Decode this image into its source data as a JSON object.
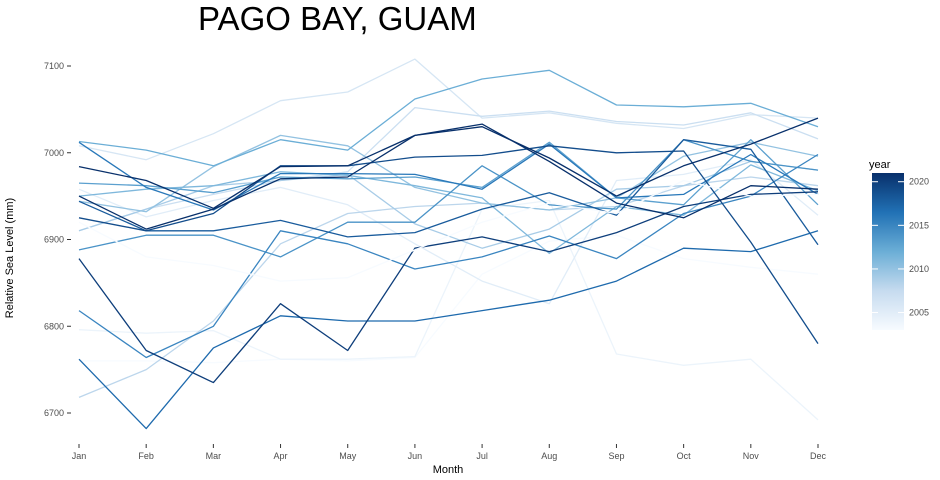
{
  "chart_data": {
    "type": "line",
    "title": "PAGO BAY,  GUAM",
    "xlabel": "Month",
    "ylabel": "Relative Sea Level (mm)",
    "categories": [
      "Jan",
      "Feb",
      "Mar",
      "Apr",
      "May",
      "Jun",
      "Jul",
      "Aug",
      "Sep",
      "Oct",
      "Nov",
      "Dec"
    ],
    "ylim": [
      6670,
      7120
    ],
    "yticks": [
      6700,
      6800,
      6900,
      7000,
      7100
    ],
    "ytick_labels": [
      "6700",
      "6800",
      "6900",
      "7000",
      "7100"
    ],
    "grid": false,
    "legend": {
      "title": "year",
      "position": "right",
      "type": "colorbar",
      "range": [
        2003,
        2021
      ],
      "ticks": [
        2005,
        2010,
        2015,
        2020
      ],
      "tick_labels": [
        "2005",
        "2010",
        "2015",
        "2020"
      ],
      "color_low": "#f7fbff",
      "color_high": "#08306b"
    },
    "series": [
      {
        "year": 2003,
        "values": [
          6760,
          6760,
          6758,
          6762,
          6760,
          6764,
          6860,
          6898,
          6905,
          6878,
          6868,
          6860
        ]
      },
      {
        "year": 2004,
        "values": [
          6796,
          6792,
          6795,
          6762,
          6762,
          6765,
          6935,
          6945,
          6768,
          6755,
          6762,
          6692
        ]
      },
      {
        "year": 2005,
        "values": [
          6958,
          6926,
          6945,
          6960,
          6940,
          6895,
          6852,
          6826,
          6968,
          6975,
          6992,
          6928
        ]
      },
      {
        "year": 2006,
        "values": [
          7008,
          6992,
          7022,
          7060,
          7070,
          7108,
          7040,
          7046,
          7034,
          7028,
          7044,
          7040
        ]
      },
      {
        "year": 2007,
        "values": [
          6910,
          6935,
          6952,
          6968,
          6978,
          7052,
          7042,
          7048,
          7036,
          7032,
          7046,
          7016
        ]
      },
      {
        "year": 2008,
        "values": [
          6718,
          6750,
          6806,
          6895,
          6930,
          6938,
          6942,
          6934,
          6938,
          6962,
          6972,
          6962
        ]
      },
      {
        "year": 2009,
        "values": [
          6910,
          6935,
          6962,
          6968,
          6975,
          6918,
          6890,
          6912,
          6958,
          6962,
          6990,
          6980
        ]
      },
      {
        "year": 2010,
        "values": [
          6944,
          6932,
          6984,
          7020,
          7008,
          6960,
          6942,
          6934,
          6948,
          6996,
          7012,
          6996
        ]
      },
      {
        "year": 2011,
        "values": [
          6950,
          6958,
          6962,
          6978,
          6974,
          6962,
          6948,
          6884,
          6938,
          6928,
          6986,
          6956
        ]
      },
      {
        "year": 2012,
        "values": [
          7013,
          7003,
          6985,
          7015,
          7003,
          7062,
          7085,
          7095,
          7055,
          7053,
          7057,
          7030
        ]
      },
      {
        "year": 2013,
        "values": [
          6965,
          6962,
          6954,
          6972,
          6970,
          6972,
          6960,
          7012,
          6948,
          6940,
          7015,
          6940
        ]
      },
      {
        "year": 2014,
        "values": [
          6888,
          6905,
          6905,
          6880,
          6920,
          6920,
          6985,
          6940,
          6935,
          7015,
          6990,
          6980
        ]
      },
      {
        "year": 2015,
        "values": [
          6818,
          6764,
          6800,
          6910,
          6895,
          6866,
          6880,
          6904,
          6878,
          6930,
          6950,
          6998
        ]
      },
      {
        "year": 2016,
        "values": [
          7012,
          6960,
          6934,
          6976,
          6976,
          6975,
          6958,
          7010,
          6948,
          6952,
          6998,
          6952
        ]
      },
      {
        "year": 2017,
        "values": [
          6762,
          6682,
          6775,
          6812,
          6806,
          6806,
          6818,
          6830,
          6852,
          6890,
          6886,
          6910
        ]
      },
      {
        "year": 2018,
        "values": [
          6944,
          6910,
          6910,
          6922,
          6903,
          6908,
          6935,
          6954,
          6928,
          7015,
          7004,
          6894
        ]
      },
      {
        "year": 2019,
        "values": [
          6925,
          6910,
          6930,
          6985,
          6985,
          6995,
          6997,
          7008,
          7000,
          7002,
          6897,
          6780
        ]
      },
      {
        "year": 2020,
        "values": [
          6878,
          6772,
          6735,
          6826,
          6772,
          6890,
          6903,
          6886,
          6908,
          6938,
          6952,
          6955
        ]
      },
      {
        "year": 2021,
        "values": [
          6950,
          6912,
          6935,
          6970,
          6972,
          7020,
          7030,
          6994,
          6950,
          6985,
          7010,
          7040
        ]
      },
      {
        "year": 2002,
        "values": [
          6920,
          6880,
          6870,
          6852,
          6856,
          6888,
          6920,
          6942,
          6930,
          6968,
          6950,
          6952
        ]
      },
      {
        "year": 2022,
        "values": [
          6984,
          6968,
          6936,
          6984,
          6985,
          7020,
          7033,
          6990,
          6942,
          6925,
          6962,
          6958
        ]
      }
    ]
  }
}
